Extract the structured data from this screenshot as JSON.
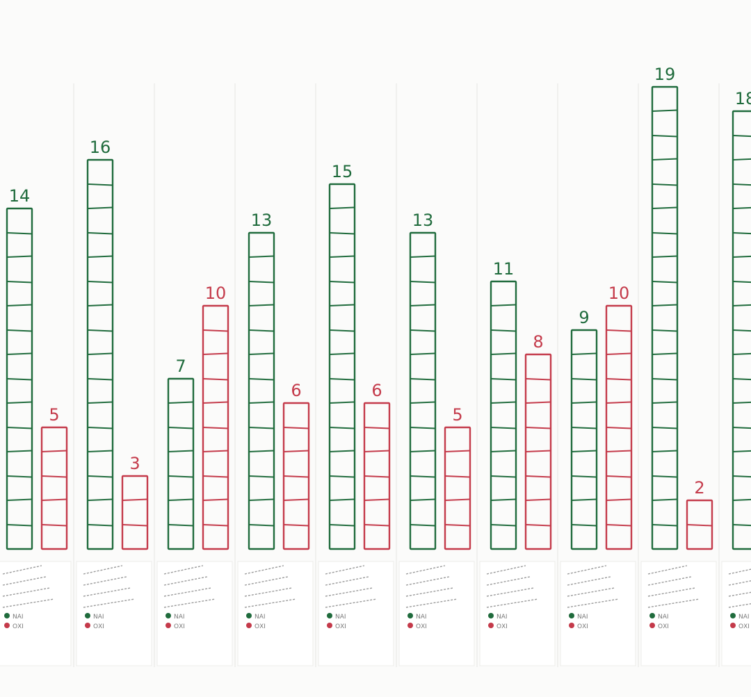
{
  "chart_data": {
    "type": "bar",
    "title": "",
    "xlabel": "",
    "ylabel": "",
    "ylim": [
      0,
      20
    ],
    "grid": false,
    "legend": "none",
    "series": [
      {
        "name": "ΝΑΙ",
        "color": "#1f6b3c"
      },
      {
        "name": "ΟΧΙ",
        "color": "#c43a4a"
      }
    ],
    "pairs": [
      {
        "category": "",
        "yes": 14,
        "no": 5,
        "yes_label": "14",
        "no_label": "5"
      },
      {
        "category": "",
        "yes": 16,
        "no": 3,
        "yes_label": "16",
        "no_label": "3"
      },
      {
        "category": "",
        "yes": 7,
        "no": 10,
        "yes_label": "7",
        "no_label": "10"
      },
      {
        "category": "",
        "yes": 13,
        "no": 6,
        "yes_label": "13",
        "no_label": "6"
      },
      {
        "category": "",
        "yes": 15,
        "no": 6,
        "yes_label": "15",
        "no_label": "6"
      },
      {
        "category": "",
        "yes": 13,
        "no": 5,
        "yes_label": "13",
        "no_label": "5"
      },
      {
        "category": "",
        "yes": 11,
        "no": 8,
        "yes_label": "11",
        "no_label": "8"
      },
      {
        "category": "",
        "yes": 9,
        "no": 10,
        "yes_label": "9",
        "no_label": "10"
      },
      {
        "category": "",
        "yes": 19,
        "no": 2,
        "yes_label": "19",
        "no_label": "2"
      },
      {
        "category": "",
        "yes": 18,
        "no": null,
        "yes_label": "18",
        "no_label": ""
      }
    ]
  },
  "card_legend": {
    "yes_text": "ΝΑΙ",
    "no_text": "ΟΧΙ"
  },
  "colors": {
    "green": "#1f6b3c",
    "red": "#c43a4a",
    "paper": "#fbfbfa",
    "card": "#ffffff"
  }
}
